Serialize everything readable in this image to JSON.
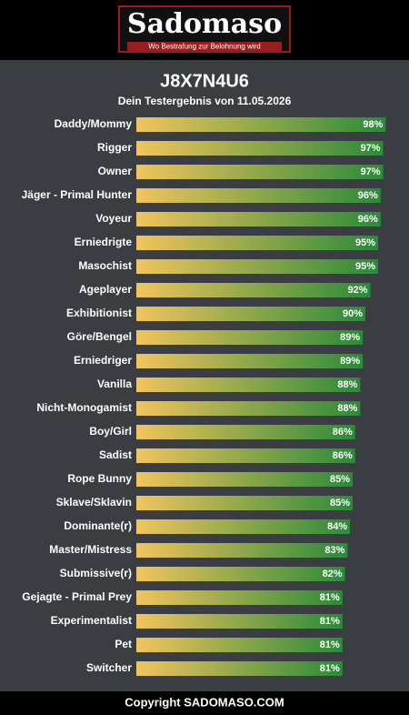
{
  "header": {
    "logo": "Sadomaso",
    "tagline": "Wo Bestrafung zur Belohnung wird"
  },
  "chart_data": {
    "type": "hbar",
    "title": "J8X7N4U6",
    "subtitle": "Dein Testergebnis von 11.05.2026",
    "categories": [
      "Daddy/Mommy",
      "Rigger",
      "Owner",
      "Jäger - Primal Hunter",
      "Voyeur",
      "Erniedrigte",
      "Masochist",
      "Ageplayer",
      "Exhibitionist",
      "Göre/Bengel",
      "Erniedriger",
      "Vanilla",
      "Nicht-Monogamist",
      "Boy/Girl",
      "Sadist",
      "Rope Bunny",
      "Sklave/Sklavin",
      "Dominante(r)",
      "Master/Mistress",
      "Submissive(r)",
      "Gejagte - Primal Prey",
      "Experimentalist",
      "Pet",
      "Switcher"
    ],
    "values": [
      98,
      97,
      97,
      96,
      96,
      95,
      95,
      92,
      90,
      89,
      89,
      88,
      88,
      86,
      86,
      85,
      85,
      84,
      83,
      82,
      81,
      81,
      81,
      81
    ],
    "value_labels": [
      "98%",
      "97%",
      "97%",
      "96%",
      "96%",
      "95%",
      "95%",
      "92%",
      "90%",
      "89%",
      "89%",
      "88%",
      "88%",
      "86%",
      "86%",
      "85%",
      "85%",
      "84%",
      "83%",
      "82%",
      "81%",
      "81%",
      "81%",
      "81%"
    ],
    "xlim": [
      0,
      100
    ],
    "color_start": "#f2c45c",
    "color_end": "#2a8a3a"
  },
  "footer": {
    "text": "Copyright SADOMASO.COM"
  }
}
